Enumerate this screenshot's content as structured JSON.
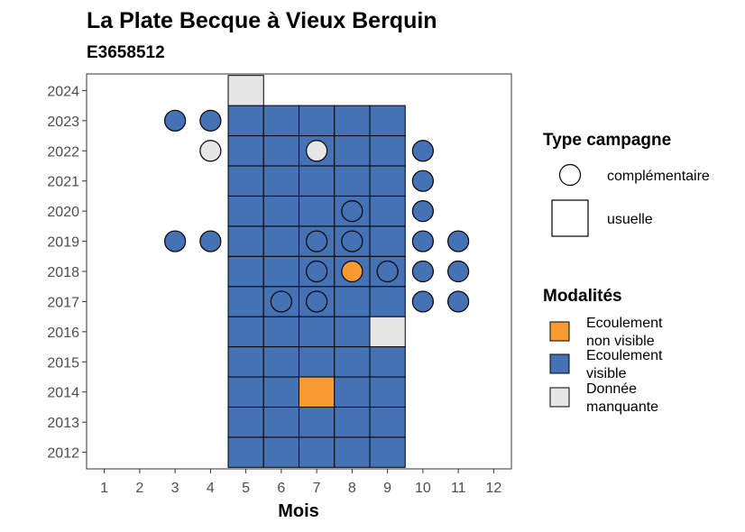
{
  "chart_data": {
    "type": "heatmap",
    "title": "La Plate Becque à Vieux Berquin",
    "subtitle": "E3658512",
    "xlabel": "Mois",
    "ylabel": "",
    "x_ticks": [
      1,
      2,
      3,
      4,
      5,
      6,
      7,
      8,
      9,
      10,
      11,
      12
    ],
    "y_ticks": [
      2012,
      2013,
      2014,
      2015,
      2016,
      2017,
      2018,
      2019,
      2020,
      2021,
      2022,
      2023,
      2024
    ],
    "xlim": [
      0.5,
      12.5
    ],
    "ylim": [
      2011.45,
      2024.55
    ],
    "colors": {
      "Ecoulement non visible": "#F79A32",
      "Ecoulement visible": "#4472B4",
      "Donnée manquante": "#E6E6E6"
    },
    "legend": {
      "type_title": "Type campagne",
      "type_entries": [
        {
          "shape": "circle",
          "label": "complémentaire"
        },
        {
          "shape": "square",
          "label": "usuelle"
        }
      ],
      "mod_title": "Modalités",
      "mod_entries": [
        {
          "key": "Ecoulement non visible",
          "line1": "Ecoulement",
          "line2": "non visible"
        },
        {
          "key": "Ecoulement visible",
          "line1": "Ecoulement",
          "line2": "visible"
        },
        {
          "key": "Donnée manquante",
          "line1": "Donnée",
          "line2": "manquante"
        }
      ]
    },
    "usuelle": [
      {
        "year": 2012,
        "months": [
          5,
          6,
          7,
          8,
          9
        ],
        "modalite": [
          "Ecoulement visible",
          "Ecoulement visible",
          "Ecoulement visible",
          "Ecoulement visible",
          "Ecoulement visible"
        ]
      },
      {
        "year": 2013,
        "months": [
          5,
          6,
          7,
          8,
          9
        ],
        "modalite": [
          "Ecoulement visible",
          "Ecoulement visible",
          "Ecoulement visible",
          "Ecoulement visible",
          "Ecoulement visible"
        ]
      },
      {
        "year": 2014,
        "months": [
          5,
          6,
          7,
          8,
          9
        ],
        "modalite": [
          "Ecoulement visible",
          "Ecoulement visible",
          "Ecoulement non visible",
          "Ecoulement visible",
          "Ecoulement visible"
        ]
      },
      {
        "year": 2015,
        "months": [
          5,
          6,
          7,
          8,
          9
        ],
        "modalite": [
          "Ecoulement visible",
          "Ecoulement visible",
          "Ecoulement visible",
          "Ecoulement visible",
          "Ecoulement visible"
        ]
      },
      {
        "year": 2016,
        "months": [
          5,
          6,
          7,
          8,
          9
        ],
        "modalite": [
          "Ecoulement visible",
          "Ecoulement visible",
          "Ecoulement visible",
          "Ecoulement visible",
          "Donnée manquante"
        ]
      },
      {
        "year": 2017,
        "months": [
          5,
          6,
          7,
          8,
          9
        ],
        "modalite": [
          "Ecoulement visible",
          "Ecoulement visible",
          "Ecoulement visible",
          "Ecoulement visible",
          "Ecoulement visible"
        ]
      },
      {
        "year": 2018,
        "months": [
          5,
          6,
          7,
          8,
          9
        ],
        "modalite": [
          "Ecoulement visible",
          "Ecoulement visible",
          "Ecoulement visible",
          "Ecoulement visible",
          "Ecoulement visible"
        ]
      },
      {
        "year": 2019,
        "months": [
          5,
          6,
          7,
          8,
          9
        ],
        "modalite": [
          "Ecoulement visible",
          "Ecoulement visible",
          "Ecoulement visible",
          "Ecoulement visible",
          "Ecoulement visible"
        ]
      },
      {
        "year": 2020,
        "months": [
          5,
          6,
          7,
          8,
          9
        ],
        "modalite": [
          "Ecoulement visible",
          "Ecoulement visible",
          "Ecoulement visible",
          "Ecoulement visible",
          "Ecoulement visible"
        ]
      },
      {
        "year": 2021,
        "months": [
          5,
          6,
          7,
          8,
          9
        ],
        "modalite": [
          "Ecoulement visible",
          "Ecoulement visible",
          "Ecoulement visible",
          "Ecoulement visible",
          "Ecoulement visible"
        ]
      },
      {
        "year": 2022,
        "months": [
          5,
          6,
          7,
          8,
          9
        ],
        "modalite": [
          "Ecoulement visible",
          "Ecoulement visible",
          "Ecoulement visible",
          "Ecoulement visible",
          "Ecoulement visible"
        ]
      },
      {
        "year": 2023,
        "months": [
          5,
          6,
          7,
          8,
          9
        ],
        "modalite": [
          "Ecoulement visible",
          "Ecoulement visible",
          "Ecoulement visible",
          "Ecoulement visible",
          "Ecoulement visible"
        ]
      },
      {
        "year": 2024,
        "months": [
          5
        ],
        "modalite": [
          "Donnée manquante"
        ]
      }
    ],
    "complementaire": [
      {
        "year": 2023,
        "month": 3,
        "modalite": "Ecoulement visible"
      },
      {
        "year": 2023,
        "month": 4,
        "modalite": "Ecoulement visible"
      },
      {
        "year": 2022,
        "month": 4,
        "modalite": "Donnée manquante"
      },
      {
        "year": 2022,
        "month": 7,
        "modalite": "Donnée manquante"
      },
      {
        "year": 2022,
        "month": 10,
        "modalite": "Ecoulement visible"
      },
      {
        "year": 2021,
        "month": 10,
        "modalite": "Ecoulement visible"
      },
      {
        "year": 2020,
        "month": 8,
        "modalite": "Ecoulement visible"
      },
      {
        "year": 2020,
        "month": 10,
        "modalite": "Ecoulement visible"
      },
      {
        "year": 2019,
        "month": 3,
        "modalite": "Ecoulement visible"
      },
      {
        "year": 2019,
        "month": 4,
        "modalite": "Ecoulement visible"
      },
      {
        "year": 2019,
        "month": 7,
        "modalite": "Ecoulement visible"
      },
      {
        "year": 2019,
        "month": 8,
        "modalite": "Ecoulement visible"
      },
      {
        "year": 2019,
        "month": 10,
        "modalite": "Ecoulement visible"
      },
      {
        "year": 2019,
        "month": 11,
        "modalite": "Ecoulement visible"
      },
      {
        "year": 2018,
        "month": 7,
        "modalite": "Ecoulement visible"
      },
      {
        "year": 2018,
        "month": 8,
        "modalite": "Ecoulement non visible"
      },
      {
        "year": 2018,
        "month": 9,
        "modalite": "Ecoulement visible"
      },
      {
        "year": 2018,
        "month": 10,
        "modalite": "Ecoulement visible"
      },
      {
        "year": 2018,
        "month": 11,
        "modalite": "Ecoulement visible"
      },
      {
        "year": 2017,
        "month": 6,
        "modalite": "Ecoulement visible"
      },
      {
        "year": 2017,
        "month": 7,
        "modalite": "Ecoulement visible"
      },
      {
        "year": 2017,
        "month": 10,
        "modalite": "Ecoulement visible"
      },
      {
        "year": 2017,
        "month": 11,
        "modalite": "Ecoulement visible"
      }
    ]
  }
}
